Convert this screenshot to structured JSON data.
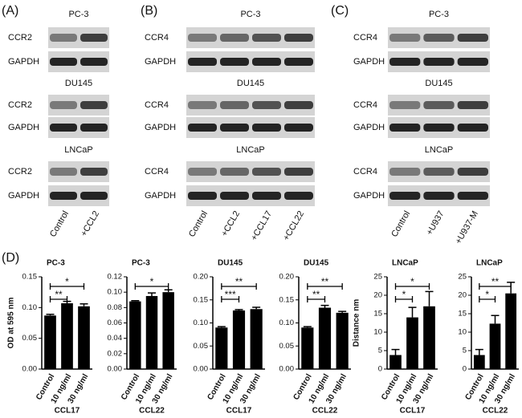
{
  "blots": [
    {
      "label": "(A)",
      "lanes": [
        "Control",
        "+CCL2"
      ],
      "groups": [
        {
          "cell": "PC-3",
          "rows": [
            "CCR2",
            "GAPDH"
          ]
        },
        {
          "cell": "DU145",
          "rows": [
            "CCR2",
            "GAPDH"
          ]
        },
        {
          "cell": "LNCaP",
          "rows": [
            "CCR2",
            "GAPDH"
          ]
        }
      ]
    },
    {
      "label": "(B)",
      "lanes": [
        "Control",
        "+CCL2",
        "+CCL17",
        "+CCL22"
      ],
      "groups": [
        {
          "cell": "PC-3",
          "rows": [
            "CCR4",
            "GAPDH"
          ]
        },
        {
          "cell": "DU145",
          "rows": [
            "CCR4",
            "GAPDH"
          ]
        },
        {
          "cell": "LNCaP",
          "rows": [
            "CCR4",
            "GAPDH"
          ]
        }
      ]
    },
    {
      "label": "(C)",
      "lanes": [
        "Control",
        "+U937",
        "+U937-M"
      ],
      "groups": [
        {
          "cell": "PC-3",
          "rows": [
            "CCR4",
            "GAPDH"
          ]
        },
        {
          "cell": "DU145",
          "rows": [
            "CCR4",
            "GAPDH"
          ]
        },
        {
          "cell": "LNCaP",
          "rows": [
            "CCR4",
            "GAPDH"
          ]
        }
      ]
    }
  ],
  "panel_d_label": "(D)",
  "chart_data": [
    {
      "type": "bar",
      "title": "PC-3",
      "ylabel": "OD at 595 nm",
      "xlabel": "CCL17",
      "categories": [
        "Control",
        "10 ng/ml",
        "30 ng/ml"
      ],
      "values": [
        0.087,
        0.107,
        0.102
      ],
      "errors": [
        0.002,
        0.003,
        0.004
      ],
      "color": "#000000",
      "ylim": [
        0,
        0.15
      ],
      "yticks": [
        {
          "value": 0,
          "label": "0.00"
        },
        {
          "value": 0.05,
          "label": "0.05"
        },
        {
          "value": 0.1,
          "label": "0.10"
        },
        {
          "value": 0.15,
          "label": "0.15"
        }
      ],
      "significance": [
        {
          "label": "**",
          "between": [
            "Control",
            "10 ng/ml"
          ]
        },
        {
          "label": "*",
          "between": [
            "Control",
            "30 ng/ml"
          ]
        }
      ]
    },
    {
      "type": "bar",
      "title": "PC-3",
      "xlabel": "CCL22",
      "categories": [
        "Control",
        "10 ng/ml",
        "30 ng/ml"
      ],
      "values": [
        0.088,
        0.095,
        0.1
      ],
      "errors": [
        0.001,
        0.004,
        0.003
      ],
      "color": "#000000",
      "ylim": [
        0,
        0.12
      ],
      "yticks": [
        {
          "value": 0,
          "label": "0.00"
        },
        {
          "value": 0.02,
          "label": "0.02"
        },
        {
          "value": 0.04,
          "label": "0.04"
        },
        {
          "value": 0.06,
          "label": "0.06"
        },
        {
          "value": 0.08,
          "label": "0.08"
        },
        {
          "value": 0.1,
          "label": "0.10"
        },
        {
          "value": 0.12,
          "label": "0.12"
        }
      ],
      "significance": [
        {
          "label": "*",
          "between": [
            "Control",
            "30 ng/ml"
          ]
        }
      ]
    },
    {
      "type": "bar",
      "title": "DU145",
      "xlabel": "CCL17",
      "categories": [
        "Control",
        "10 ng/ml",
        "30 ng/ml"
      ],
      "values": [
        0.09,
        0.127,
        0.13
      ],
      "errors": [
        0.002,
        0.002,
        0.004
      ],
      "color": "#000000",
      "ylim": [
        0,
        0.2
      ],
      "yticks": [
        {
          "value": 0,
          "label": "0.00"
        },
        {
          "value": 0.05,
          "label": "0.05"
        },
        {
          "value": 0.1,
          "label": "0.10"
        },
        {
          "value": 0.15,
          "label": "0.15"
        },
        {
          "value": 0.2,
          "label": "0.20"
        }
      ],
      "significance": [
        {
          "label": "***",
          "between": [
            "Control",
            "10 ng/ml"
          ]
        },
        {
          "label": "**",
          "between": [
            "Control",
            "30 ng/ml"
          ]
        }
      ]
    },
    {
      "type": "bar",
      "title": "DU145",
      "xlabel": "CCL22",
      "categories": [
        "Control",
        "10 ng/ml",
        "30 ng/ml"
      ],
      "values": [
        0.09,
        0.133,
        0.122
      ],
      "errors": [
        0.002,
        0.005,
        0.003
      ],
      "color": "#000000",
      "ylim": [
        0,
        0.2
      ],
      "yticks": [
        {
          "value": 0,
          "label": "0.00"
        },
        {
          "value": 0.05,
          "label": "0.05"
        },
        {
          "value": 0.1,
          "label": "0.10"
        },
        {
          "value": 0.15,
          "label": "0.15"
        },
        {
          "value": 0.2,
          "label": "0.20"
        }
      ],
      "significance": [
        {
          "label": "**",
          "between": [
            "Control",
            "10 ng/ml"
          ]
        },
        {
          "label": "**",
          "between": [
            "Control",
            "30 ng/ml"
          ]
        }
      ]
    },
    {
      "type": "bar",
      "title": "LNCaP",
      "ylabel": "Distance nm",
      "xlabel": "CCL17",
      "categories": [
        "Control",
        "10 ng/ml",
        "30 ng/ml"
      ],
      "values": [
        3.8,
        14,
        17
      ],
      "errors": [
        1.5,
        2.7,
        4
      ],
      "color": "#000000",
      "ylim": [
        0,
        25
      ],
      "yticks": [
        0,
        5,
        10,
        15,
        20,
        25
      ],
      "significance": [
        {
          "label": "*",
          "between": [
            "Control",
            "10 ng/ml"
          ]
        },
        {
          "label": "*",
          "between": [
            "Control",
            "30 ng/ml"
          ]
        }
      ]
    },
    {
      "type": "bar",
      "title": "LNCaP",
      "xlabel": "CCL22",
      "categories": [
        "Control",
        "10 ng/ml",
        "30 ng/ml"
      ],
      "values": [
        3.8,
        12.3,
        20.5
      ],
      "errors": [
        1.5,
        2.2,
        3
      ],
      "color": "#000000",
      "ylim": [
        0,
        25
      ],
      "yticks": [
        0,
        5,
        10,
        15,
        20,
        25
      ],
      "significance": [
        {
          "label": "*",
          "between": [
            "Control",
            "10 ng/ml"
          ]
        },
        {
          "label": "**",
          "between": [
            "Control",
            "30 ng/ml"
          ]
        }
      ]
    }
  ]
}
